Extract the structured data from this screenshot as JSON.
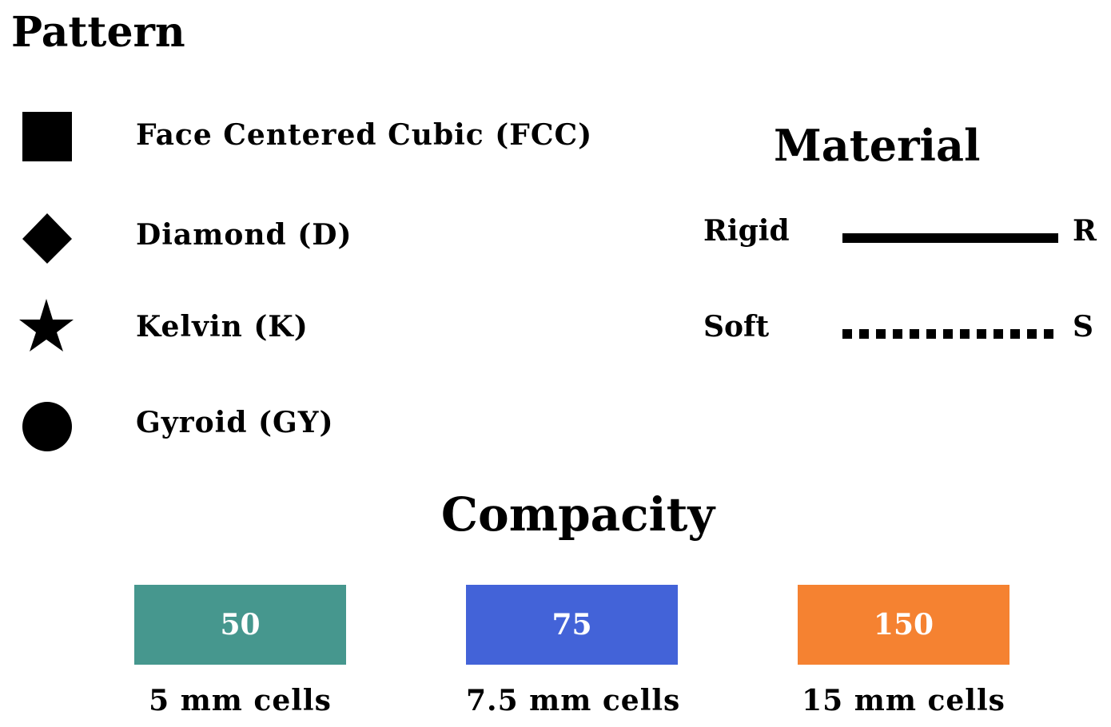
{
  "pattern": {
    "title": "Pattern",
    "items": [
      {
        "label": "Face Centered Cubic (FCC)",
        "icon": "square-icon"
      },
      {
        "label": "Diamond (D)",
        "icon": "diamond-icon"
      },
      {
        "label": "Kelvin (K)",
        "icon": "star-icon"
      },
      {
        "label": "Gyroid (GY)",
        "icon": "circle-icon"
      }
    ]
  },
  "material": {
    "title": "Material",
    "items": [
      {
        "label": "Rigid",
        "abbr": "R",
        "line_style": "solid"
      },
      {
        "label": "Soft",
        "abbr": "S",
        "line_style": "dotted"
      }
    ]
  },
  "compacity": {
    "title": "Compacity",
    "items": [
      {
        "value": "50",
        "caption": "5 mm cells",
        "color": "#46978E"
      },
      {
        "value": "75",
        "caption": "7.5 mm cells",
        "color": "#4363D8"
      },
      {
        "value": "150",
        "caption": "15 mm cells",
        "color": "#F58231"
      }
    ]
  }
}
